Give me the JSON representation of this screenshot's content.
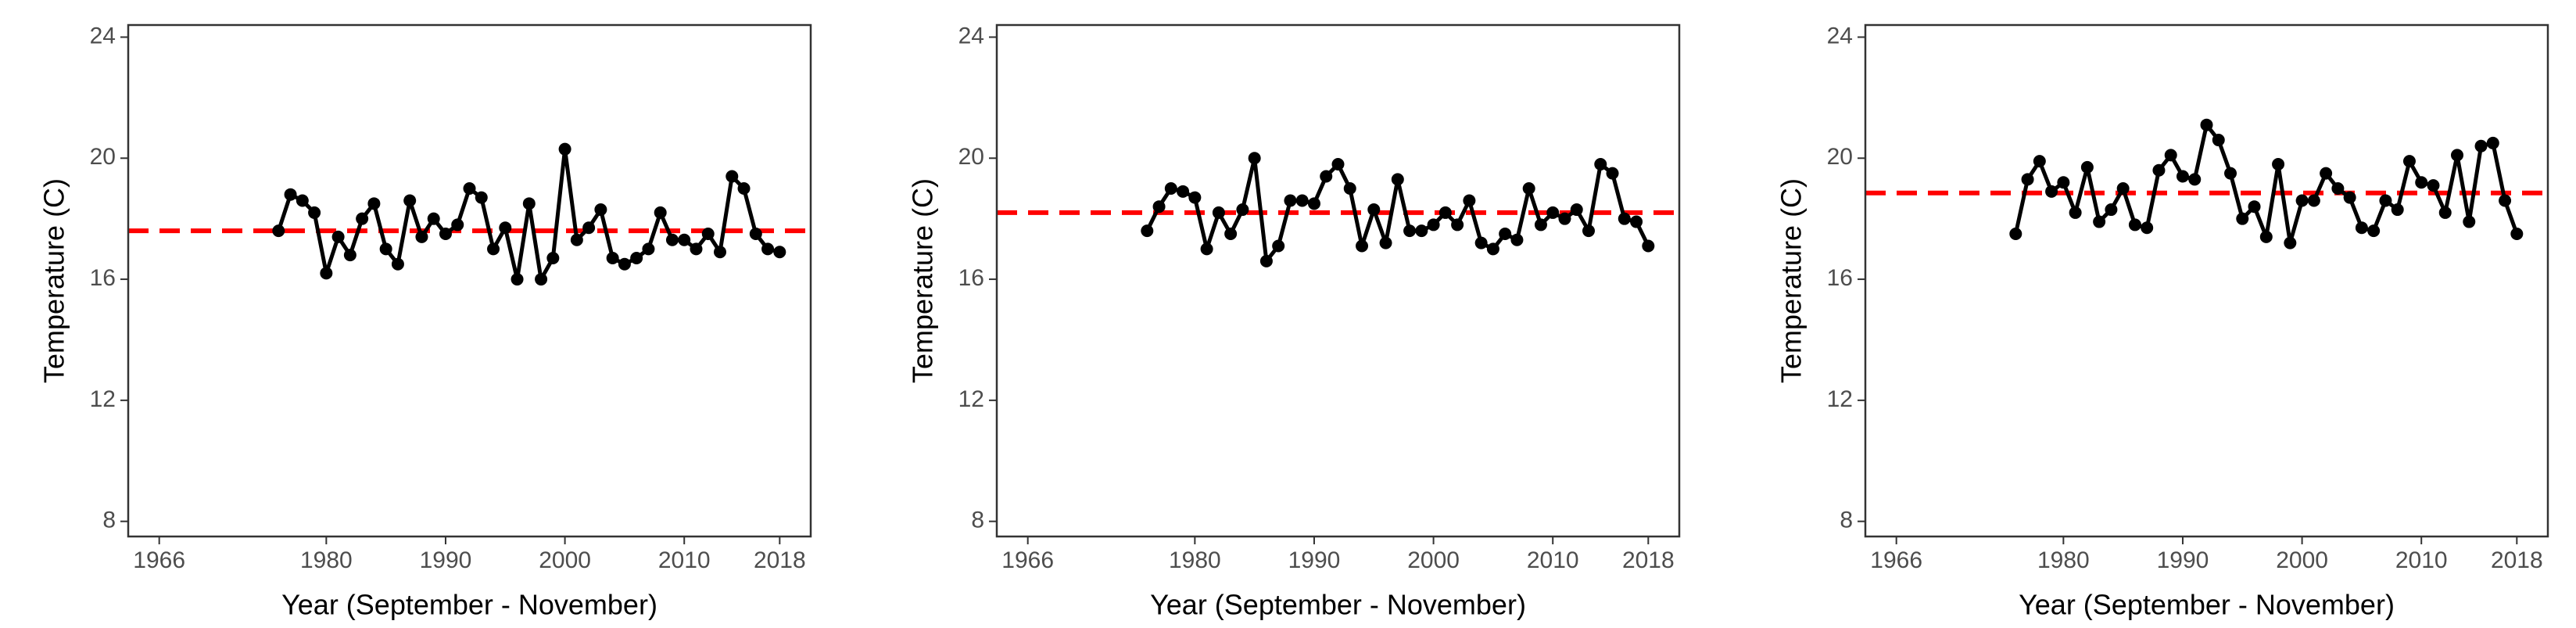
{
  "chart_data": [
    {
      "type": "line",
      "xlabel": "Year (September - November)",
      "ylabel": "Temperature (C)",
      "xlim": [
        1963.4,
        2020.6
      ],
      "ylim": [
        7.5,
        24.4
      ],
      "xticks": [
        1966,
        1980,
        1990,
        2000,
        2010,
        2018
      ],
      "yticks": [
        8,
        12,
        16,
        20,
        24
      ],
      "x": [
        1976,
        1977,
        1978,
        1979,
        1980,
        1981,
        1982,
        1983,
        1984,
        1985,
        1986,
        1987,
        1988,
        1989,
        1990,
        1991,
        1992,
        1993,
        1994,
        1995,
        1996,
        1997,
        1998,
        1999,
        2000,
        2001,
        2002,
        2003,
        2004,
        2005,
        2006,
        2007,
        2008,
        2009,
        2010,
        2011,
        2012,
        2013,
        2014,
        2015,
        2016,
        2017,
        2018
      ],
      "series": [
        {
          "color": "#000000",
          "values": [
            17.6,
            18.8,
            18.6,
            18.2,
            16.2,
            17.4,
            16.8,
            18.0,
            18.5,
            17.0,
            16.5,
            18.6,
            17.4,
            18.0,
            17.5,
            17.8,
            19.0,
            18.7,
            17.0,
            17.7,
            16.0,
            18.5,
            16.0,
            16.7,
            20.3,
            17.3,
            17.7,
            18.3,
            16.7,
            16.5,
            16.7,
            17.0,
            18.2,
            17.3,
            17.3,
            17.0,
            17.5,
            16.9,
            19.4,
            19.0,
            17.5,
            17.0,
            16.9
          ]
        }
      ],
      "reference_line": {
        "value": 17.6,
        "color": "#ff0000"
      }
    },
    {
      "type": "line",
      "xlabel": "Year (September - November)",
      "ylabel": "Temperature (C)",
      "xlim": [
        1963.4,
        2020.6
      ],
      "ylim": [
        7.5,
        24.4
      ],
      "xticks": [
        1966,
        1980,
        1990,
        2000,
        2010,
        2018
      ],
      "yticks": [
        8,
        12,
        16,
        20,
        24
      ],
      "x": [
        1976,
        1977,
        1978,
        1979,
        1980,
        1981,
        1982,
        1983,
        1984,
        1985,
        1986,
        1987,
        1988,
        1989,
        1990,
        1991,
        1992,
        1993,
        1994,
        1995,
        1996,
        1997,
        1998,
        1999,
        2000,
        2001,
        2002,
        2003,
        2004,
        2005,
        2006,
        2007,
        2008,
        2009,
        2010,
        2011,
        2012,
        2013,
        2014,
        2015,
        2016,
        2017,
        2018
      ],
      "series": [
        {
          "color": "#000000",
          "values": [
            17.6,
            18.4,
            19.0,
            18.9,
            18.7,
            17.0,
            18.2,
            17.5,
            18.3,
            20.0,
            16.6,
            17.1,
            18.6,
            18.6,
            18.5,
            19.4,
            19.8,
            19.0,
            17.1,
            18.3,
            17.2,
            19.3,
            17.6,
            17.6,
            17.8,
            18.2,
            17.8,
            18.6,
            17.2,
            17.0,
            17.5,
            17.3,
            19.0,
            17.8,
            18.2,
            18.0,
            18.3,
            17.6,
            19.8,
            19.5,
            18.0,
            17.9,
            17.1
          ]
        }
      ],
      "reference_line": {
        "value": 18.2,
        "color": "#ff0000"
      }
    },
    {
      "type": "line",
      "xlabel": "Year (September - November)",
      "ylabel": "Temperature (C)",
      "xlim": [
        1963.4,
        2020.6
      ],
      "ylim": [
        7.5,
        24.4
      ],
      "xticks": [
        1966,
        1980,
        1990,
        2000,
        2010,
        2018
      ],
      "yticks": [
        8,
        12,
        16,
        20,
        24
      ],
      "x": [
        1976,
        1977,
        1978,
        1979,
        1980,
        1981,
        1982,
        1983,
        1984,
        1985,
        1986,
        1987,
        1988,
        1989,
        1990,
        1991,
        1992,
        1993,
        1994,
        1995,
        1996,
        1997,
        1998,
        1999,
        2000,
        2001,
        2002,
        2003,
        2004,
        2005,
        2006,
        2007,
        2008,
        2009,
        2010,
        2011,
        2012,
        2013,
        2014,
        2015,
        2016,
        2017,
        2018
      ],
      "series": [
        {
          "color": "#000000",
          "values": [
            17.5,
            19.3,
            19.9,
            18.9,
            19.2,
            18.2,
            19.7,
            17.9,
            18.3,
            19.0,
            17.8,
            17.7,
            19.6,
            20.1,
            19.4,
            19.3,
            21.1,
            20.6,
            19.5,
            18.0,
            18.4,
            17.4,
            19.8,
            17.2,
            18.6,
            18.6,
            19.5,
            19.0,
            18.7,
            17.7,
            17.6,
            18.6,
            18.3,
            19.9,
            19.2,
            19.1,
            18.2,
            20.1,
            17.9,
            20.4,
            20.5,
            18.6,
            17.5
          ]
        }
      ],
      "reference_line": {
        "value": 18.85,
        "color": "#ff0000"
      }
    }
  ]
}
